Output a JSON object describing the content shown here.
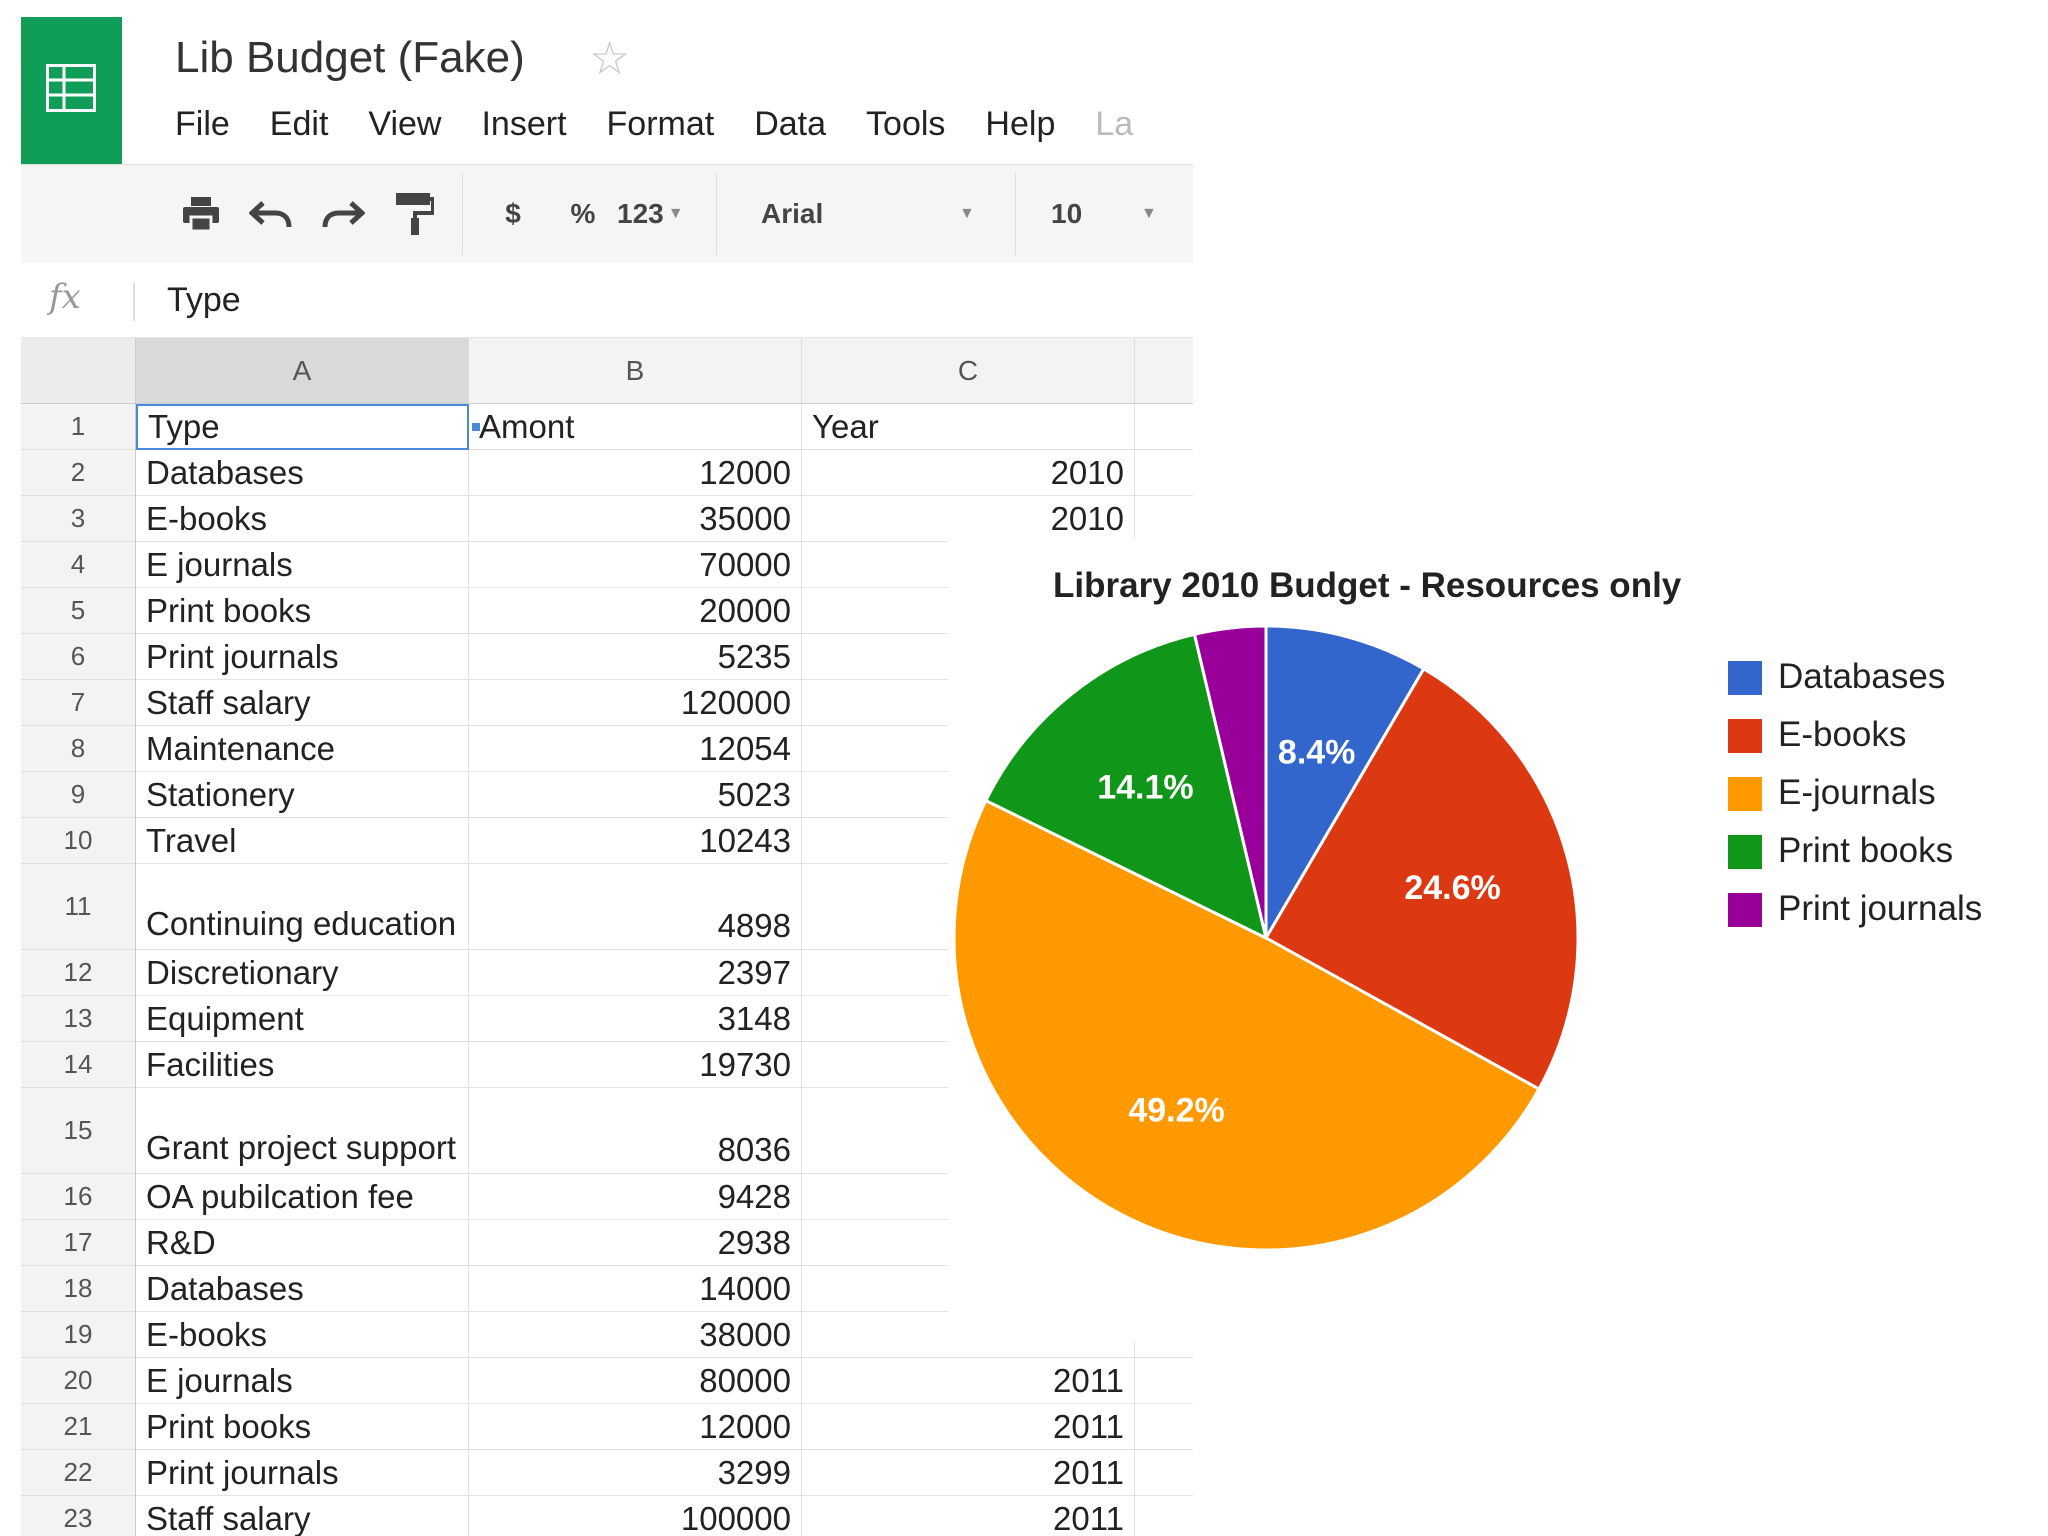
{
  "app": {
    "doc_title": "Lib Budget (Fake)",
    "menu": [
      "File",
      "Edit",
      "View",
      "Insert",
      "Format",
      "Data",
      "Tools",
      "Help",
      "La"
    ]
  },
  "toolbar": {
    "print_icon": "print-icon",
    "undo_icon": "undo-icon",
    "redo_icon": "redo-icon",
    "paint_format_icon": "paint-format-icon",
    "currency_label": "$",
    "percent_label": "%",
    "number_format_label": "123",
    "font_family": "Arial",
    "font_size": "10"
  },
  "formula_bar": {
    "fx_label": "fx",
    "content": "Type"
  },
  "grid": {
    "columns": [
      "A",
      "B",
      "C"
    ],
    "rows": [
      {
        "n": "1",
        "a": "Type",
        "b": "Amont",
        "c": "Year"
      },
      {
        "n": "2",
        "a": "Databases",
        "b": "12000",
        "c": "2010"
      },
      {
        "n": "3",
        "a": "E-books",
        "b": "35000",
        "c": "2010"
      },
      {
        "n": "4",
        "a": "E journals",
        "b": "70000",
        "c": ""
      },
      {
        "n": "5",
        "a": "Print books",
        "b": "20000",
        "c": ""
      },
      {
        "n": "6",
        "a": "Print journals",
        "b": "5235",
        "c": ""
      },
      {
        "n": "7",
        "a": "Staff salary",
        "b": "120000",
        "c": ""
      },
      {
        "n": "8",
        "a": "Maintenance",
        "b": "12054",
        "c": ""
      },
      {
        "n": "9",
        "a": "Stationery",
        "b": "5023",
        "c": ""
      },
      {
        "n": "10",
        "a": "Travel",
        "b": "10243",
        "c": ""
      },
      {
        "n": "11",
        "a": "Continuing education",
        "b": "4898",
        "c": ""
      },
      {
        "n": "12",
        "a": "Discretionary",
        "b": "2397",
        "c": ""
      },
      {
        "n": "13",
        "a": "Equipment",
        "b": "3148",
        "c": ""
      },
      {
        "n": "14",
        "a": "Facilities",
        "b": "19730",
        "c": ""
      },
      {
        "n": "15",
        "a": "Grant project support",
        "b": "8036",
        "c": ""
      },
      {
        "n": "16",
        "a": "OA pubilcation fee",
        "b": "9428",
        "c": ""
      },
      {
        "n": "17",
        "a": "R&D",
        "b": "2938",
        "c": ""
      },
      {
        "n": "18",
        "a": "Databases",
        "b": "14000",
        "c": ""
      },
      {
        "n": "19",
        "a": "E-books",
        "b": "38000",
        "c": ""
      },
      {
        "n": "20",
        "a": "E journals",
        "b": "80000",
        "c": "2011"
      },
      {
        "n": "21",
        "a": "Print books",
        "b": "12000",
        "c": "2011"
      },
      {
        "n": "22",
        "a": "Print journals",
        "b": "3299",
        "c": "2011"
      },
      {
        "n": "23",
        "a": "Staff salary",
        "b": "100000",
        "c": "2011"
      }
    ]
  },
  "chart_data": {
    "type": "pie",
    "title": "Library 2010 Budget - Resources only",
    "legend_position": "right",
    "categories": [
      "Databases",
      "E-books",
      "E-journals",
      "Print books",
      "Print journals"
    ],
    "values": [
      12000,
      35000,
      70000,
      20000,
      5235
    ],
    "labels": [
      "8.4%",
      "24.6%",
      "49.2%",
      "14.1%",
      ""
    ],
    "colors": [
      "#3366cc",
      "#dc3912",
      "#ff9900",
      "#109618",
      "#990099"
    ]
  }
}
